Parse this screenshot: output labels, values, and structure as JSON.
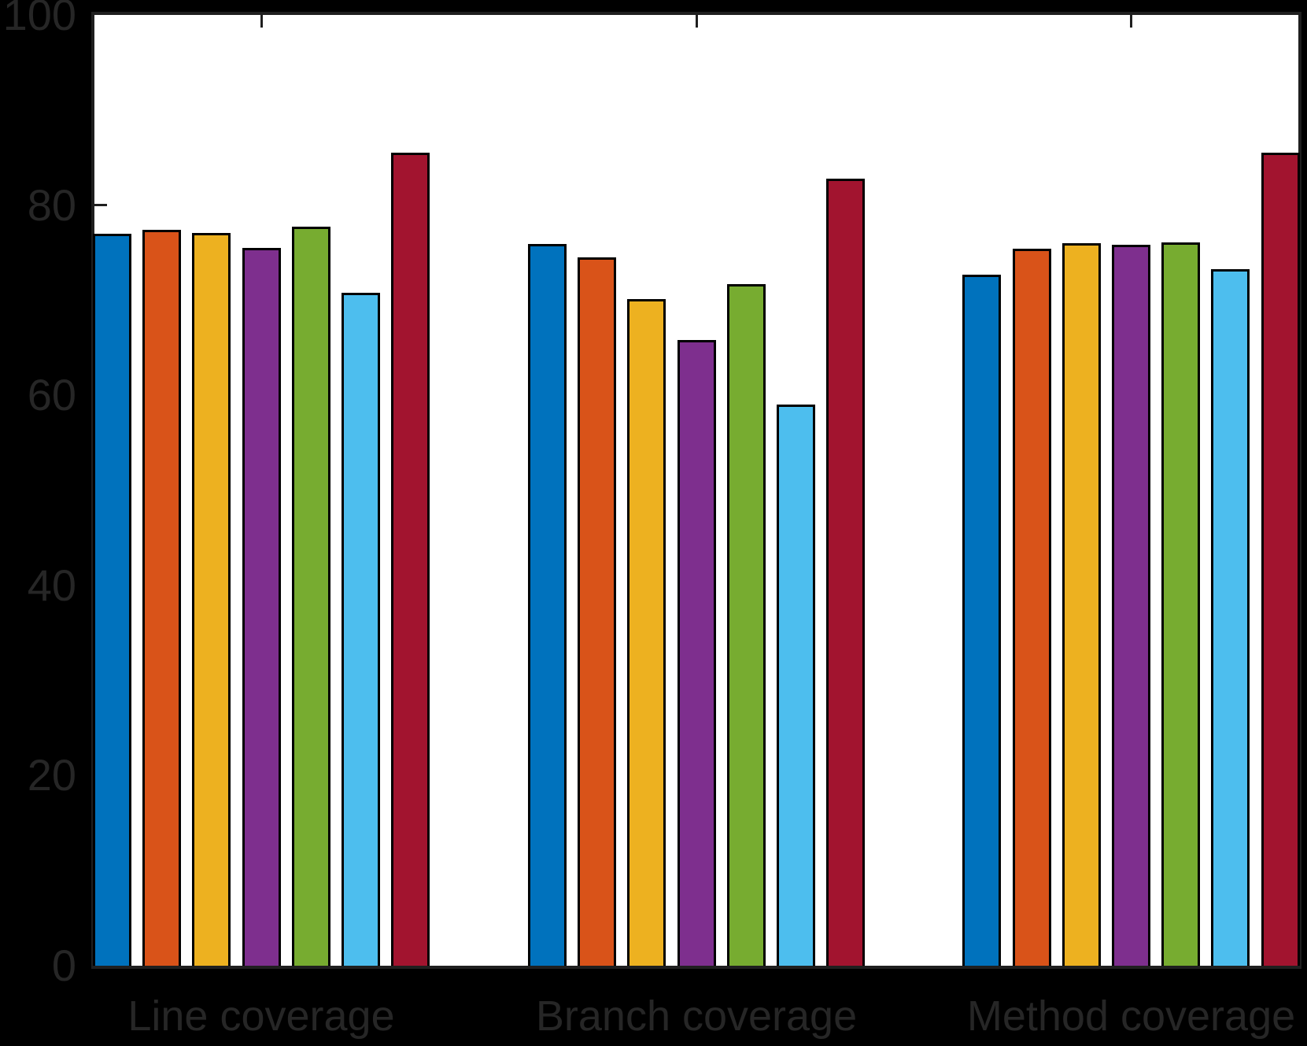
{
  "figure": {
    "background_color": "#000000",
    "plot_background_color": "#ffffff",
    "axis_color": "#1f1f1f",
    "text_color": "#262626",
    "bar_edge_color": "#000000"
  },
  "chart_data": {
    "type": "bar",
    "title": "",
    "xlabel": "",
    "ylabel": "",
    "categories": [
      "Line coverage",
      "Branch coverage",
      "Method coverage"
    ],
    "series": [
      {
        "name": "blue",
        "color": "#0072BD",
        "values": [
          77.0,
          75.9,
          72.7
        ]
      },
      {
        "name": "orange",
        "color": "#D95319",
        "values": [
          77.4,
          74.5,
          75.4
        ]
      },
      {
        "name": "yellow",
        "color": "#EDB120",
        "values": [
          77.1,
          70.1,
          76.0
        ]
      },
      {
        "name": "purple",
        "color": "#7E2F8E",
        "values": [
          75.5,
          65.8,
          75.8
        ]
      },
      {
        "name": "green",
        "color": "#77AC30",
        "values": [
          77.7,
          71.7,
          76.1
        ]
      },
      {
        "name": "light-blue",
        "color": "#4DBEEE",
        "values": [
          70.8,
          59.0,
          73.3
        ]
      },
      {
        "name": "dark-red",
        "color": "#A2142F",
        "values": [
          85.5,
          82.8,
          85.5
        ]
      }
    ],
    "ylim": [
      0,
      100
    ],
    "yticks": [
      0,
      20,
      40,
      60,
      80,
      100
    ],
    "ytick_labels": [
      "0",
      "20",
      "40",
      "60",
      "80",
      "100"
    ],
    "grid": false,
    "legend": false,
    "layout_hint": "grouped bars, 7 series per category, box on, ticks inward, mirrored ticks on top and right axes"
  }
}
